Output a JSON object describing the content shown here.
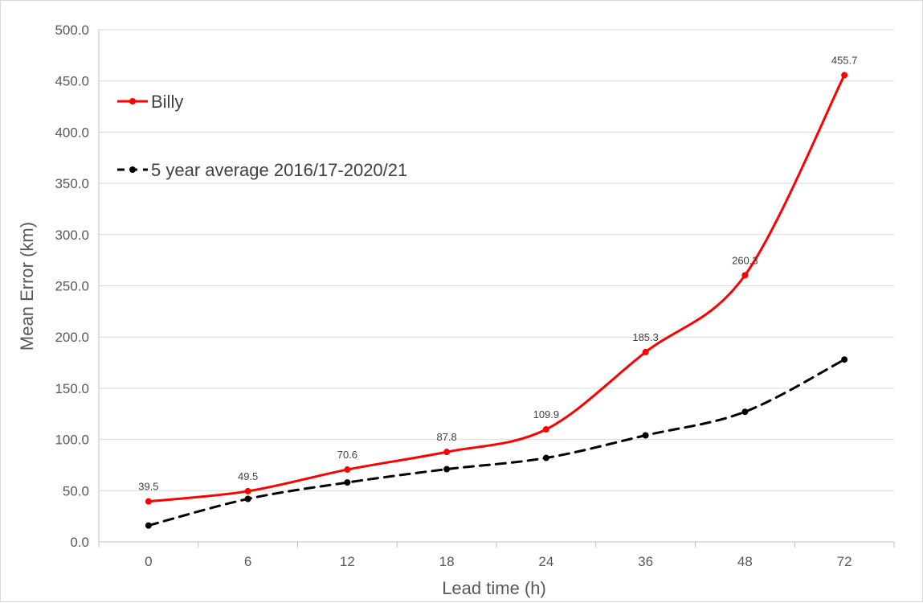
{
  "chart_data": {
    "type": "line",
    "title": "",
    "xlabel": "Lead time (h)",
    "ylabel": "Mean Error (km)",
    "categories": [
      "0",
      "6",
      "12",
      "18",
      "24",
      "36",
      "48",
      "72"
    ],
    "ylim": [
      0,
      500
    ],
    "yticks": [
      "0.0",
      "50.0",
      "100.0",
      "150.0",
      "200.0",
      "250.0",
      "300.0",
      "350.0",
      "400.0",
      "450.0",
      "500.0"
    ],
    "grid": true,
    "legend_position": "top-left",
    "series": [
      {
        "name": "Billy",
        "color": "#ff0000",
        "style": "solid",
        "values": [
          39.5,
          49.5,
          70.6,
          87.8,
          109.9,
          185.3,
          260.3,
          455.7
        ],
        "data_labels": [
          "39.5",
          "49.5",
          "70.6",
          "87.8",
          "109.9",
          "185.3",
          "260.3",
          "455.7"
        ]
      },
      {
        "name": "5 year average 2016/17-2020/21",
        "color": "#000000",
        "style": "dashed",
        "values": [
          16,
          42,
          58,
          71,
          82,
          104,
          127,
          178
        ]
      }
    ]
  }
}
